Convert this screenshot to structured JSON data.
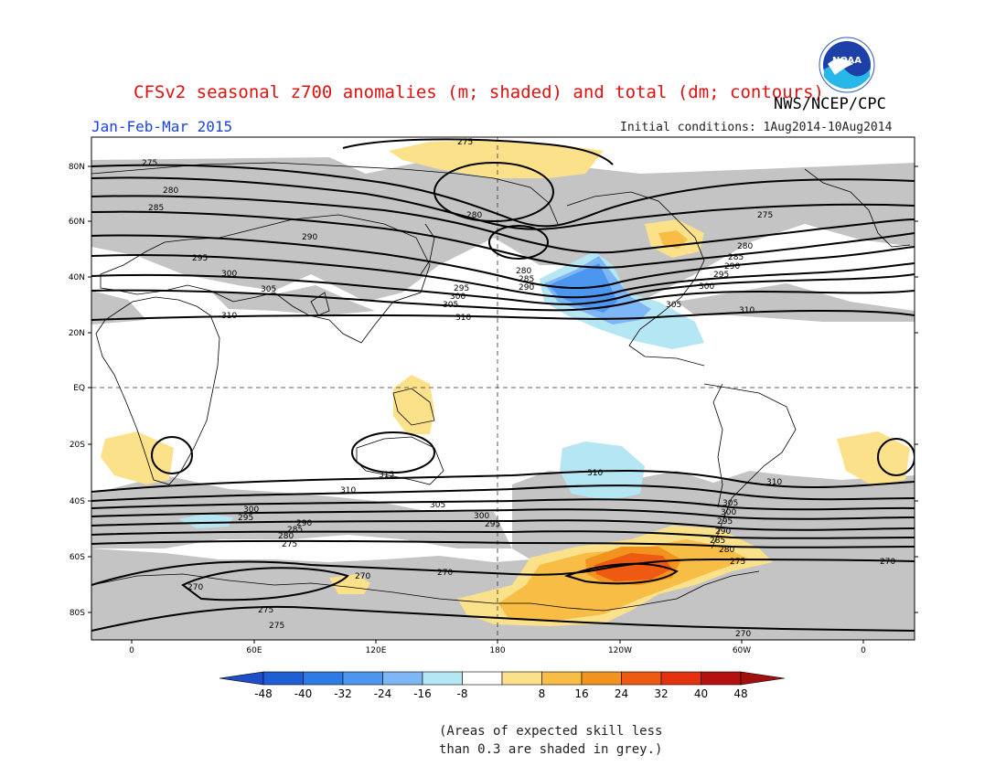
{
  "title": "CFSv2 seasonal z700 anomalies (m; shaded) and total (dm; contours)",
  "agency": "NWS/NCEP/CPC",
  "season": "Jan-Feb-Mar 2015",
  "initial_conditions": "Initial conditions: 1Aug2014-10Aug2014",
  "logo_text": "NOAA",
  "lat_labels": [
    "80N",
    "60N",
    "40N",
    "20N",
    "EQ",
    "20S",
    "40S",
    "60S",
    "80S"
  ],
  "lon_labels": [
    "0",
    "60E",
    "120E",
    "180",
    "120W",
    "60W",
    "0"
  ],
  "colorbar": {
    "labels": [
      "-48",
      "-40",
      "-32",
      "-24",
      "-16",
      "-8",
      "8",
      "16",
      "24",
      "32",
      "40",
      "48"
    ],
    "colors": [
      "#1f5fd6",
      "#2f7be6",
      "#4c96f0",
      "#7fb6f5",
      "#b4e6f4",
      "#ffffff",
      "#fbe18a",
      "#f7bd45",
      "#f2931f",
      "#ee5a12",
      "#e23210",
      "#b4120f"
    ],
    "end_low": "#1e4fc8",
    "end_high": "#a1100d"
  },
  "contour_labels": {
    "c275": "275",
    "c280": "280",
    "c285": "285",
    "c290": "290",
    "c295": "295",
    "c300": "300",
    "c305": "305",
    "c310": "310",
    "c315": "315",
    "c270": "270"
  },
  "colors": {
    "skill_grey": "#c4c4c4",
    "negative_anom": "#2f7be6",
    "positive_anom": "#f7bd45"
  },
  "note_line1": "(Areas of expected skill less",
  "note_line2": "than 0.3 are shaded in grey.)"
}
